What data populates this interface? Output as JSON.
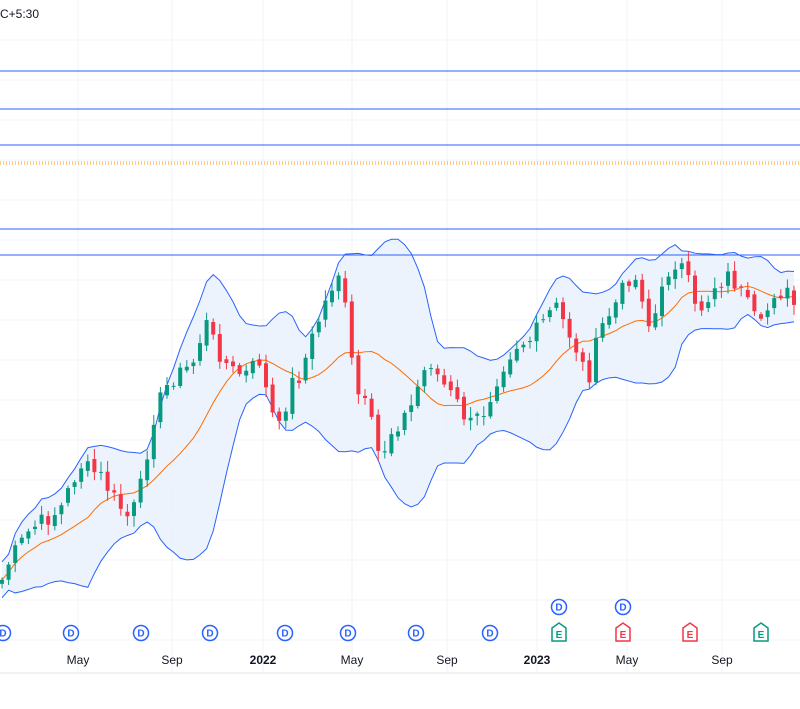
{
  "header": {
    "timezone_label": "C+5:30"
  },
  "colors": {
    "up": "#089981",
    "down": "#f23645",
    "basis": "#ff6d00",
    "band": "#2962ff",
    "band_fill": "#e8f0fb",
    "hline": "#2962ff",
    "dotted": "#ff9800",
    "grid": "#f0f3fa",
    "event_d": "#2962ff"
  },
  "chart_data": {
    "type": "candlestick",
    "overlay": "Bollinger Bands",
    "x_axis": {
      "tick_labels": [
        {
          "label": "May",
          "bold": false
        },
        {
          "label": "Sep",
          "bold": false
        },
        {
          "label": "2022",
          "bold": true
        },
        {
          "label": "May",
          "bold": false
        },
        {
          "label": "Sep",
          "bold": false
        },
        {
          "label": "2023",
          "bold": true
        },
        {
          "label": "May",
          "bold": false
        },
        {
          "label": "Sep",
          "bold": false
        }
      ]
    },
    "horizontal_lines": [
      {
        "style": "solid"
      },
      {
        "style": "solid"
      },
      {
        "style": "solid"
      },
      {
        "style": "dotted"
      },
      {
        "style": "solid"
      },
      {
        "style": "solid"
      }
    ],
    "events": [
      {
        "letter": "D",
        "type": "dividend"
      },
      {
        "letter": "D",
        "type": "dividend"
      },
      {
        "letter": "D",
        "type": "dividend"
      },
      {
        "letter": "D",
        "type": "dividend"
      },
      {
        "letter": "D",
        "type": "dividend"
      },
      {
        "letter": "D",
        "type": "dividend"
      },
      {
        "letter": "D",
        "type": "dividend"
      },
      {
        "letter": "D",
        "type": "dividend"
      },
      {
        "letter": "D",
        "type": "dividend"
      },
      {
        "letter": "D",
        "type": "dividend"
      },
      {
        "letter": "E",
        "type": "earnings-beat"
      },
      {
        "letter": "E",
        "type": "earnings-miss"
      },
      {
        "letter": "E",
        "type": "earnings-miss"
      },
      {
        "letter": "E",
        "type": "earnings-beat"
      }
    ],
    "grid": true,
    "legend": "none"
  }
}
